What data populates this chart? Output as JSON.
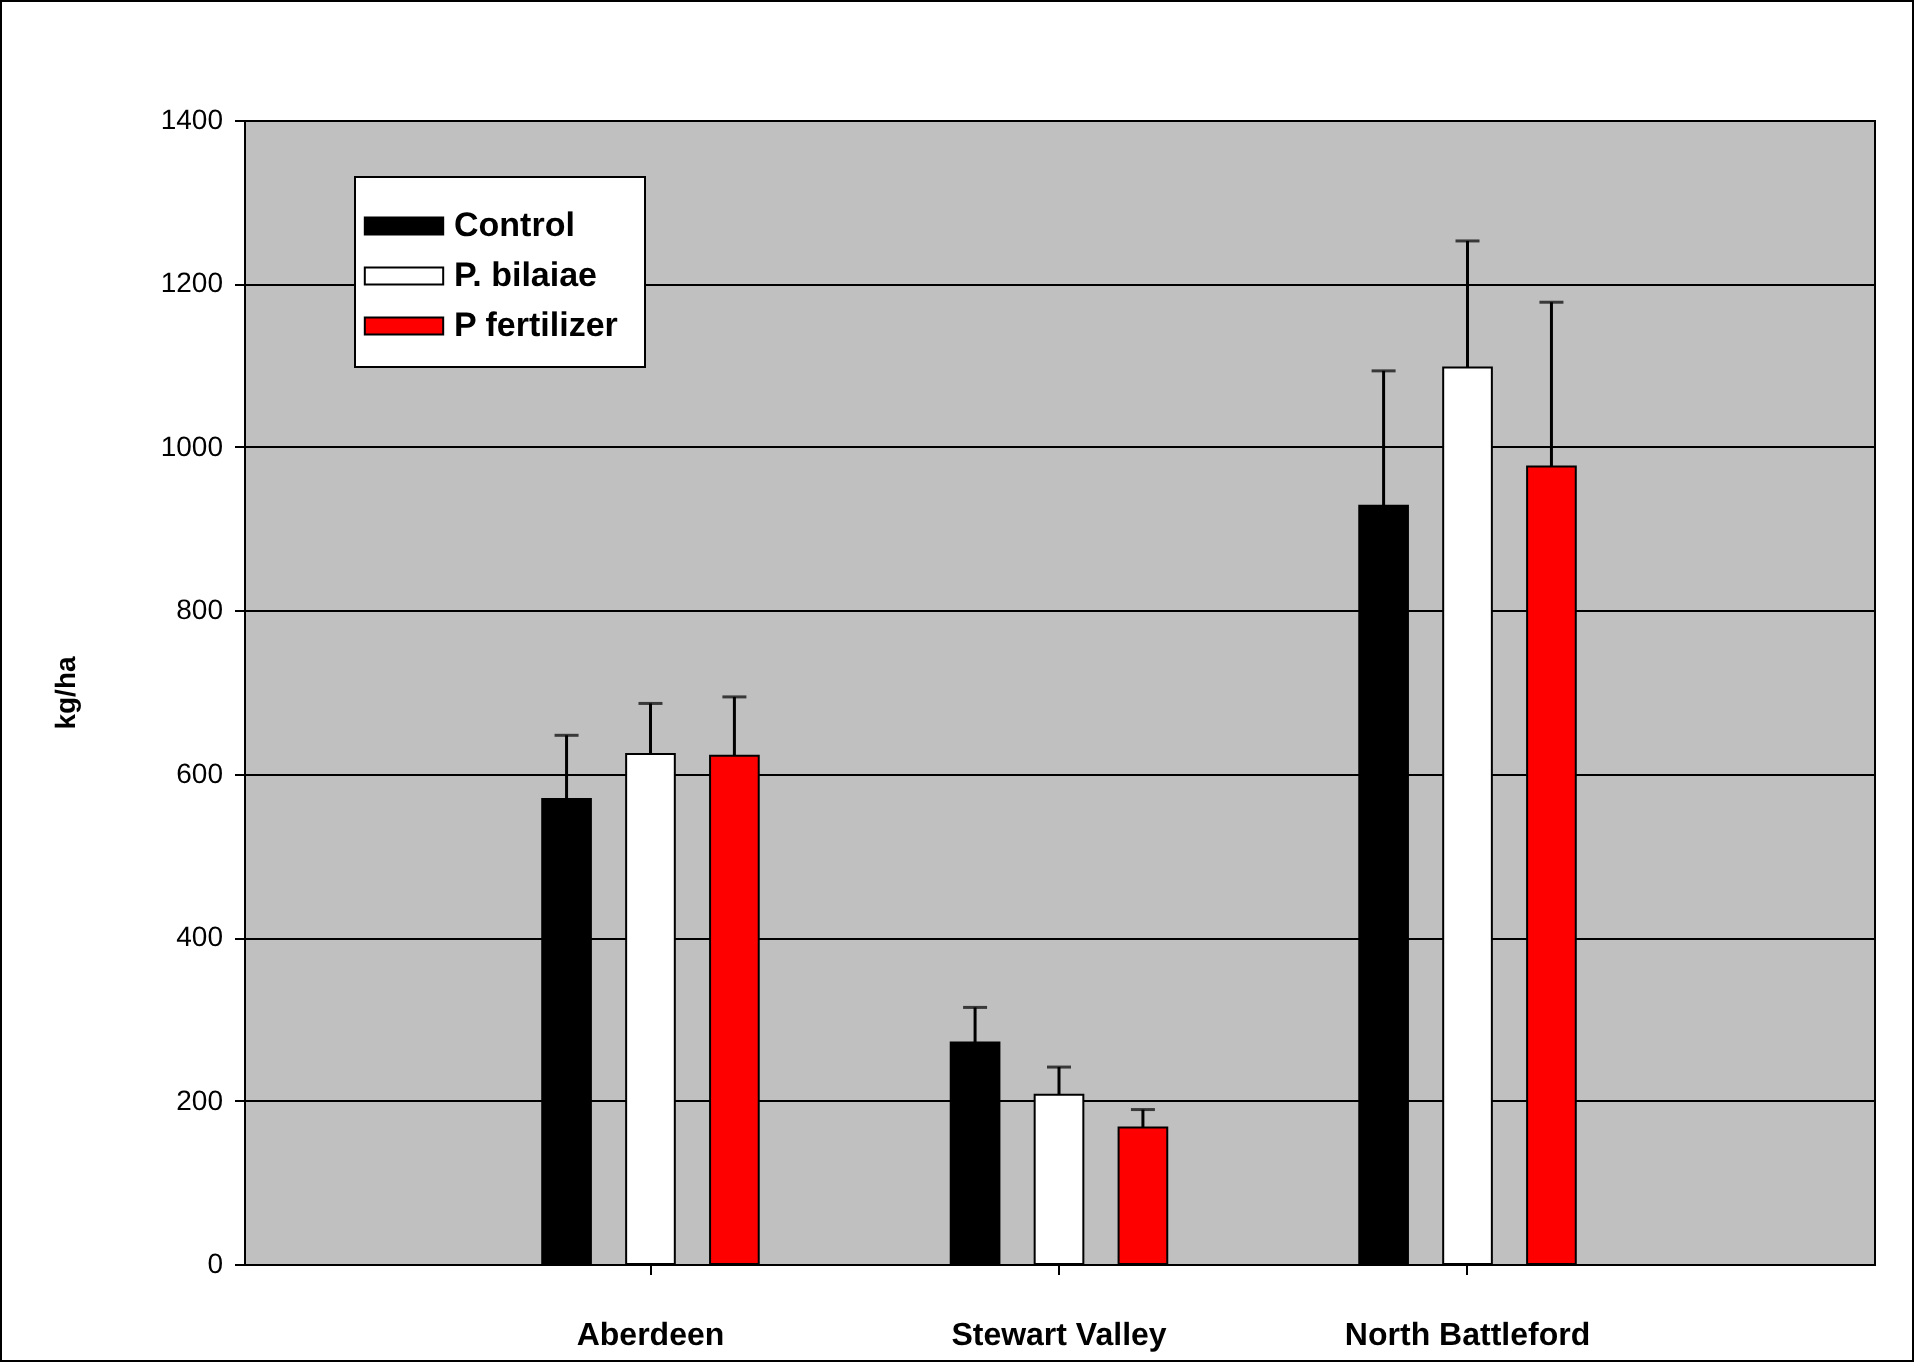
{
  "chart_data": {
    "type": "bar",
    "ylabel": "kg/ha",
    "categories": [
      "Aberdeen",
      "Stewart Valley",
      "North Battleford"
    ],
    "series": [
      {
        "name": "Control",
        "color": "#000000",
        "values": [
          569,
          271,
          928
        ],
        "errors": [
          78,
          43,
          165
        ]
      },
      {
        "name": "P. bilaiae",
        "color": "#ffffff",
        "values": [
          624,
          207,
          1097
        ],
        "errors": [
          62,
          34,
          155
        ]
      },
      {
        "name": "P fertilizer",
        "color": "#ff0000",
        "values": [
          622,
          167,
          976
        ],
        "errors": [
          72,
          22,
          201
        ]
      }
    ],
    "ylim": [
      0,
      1400
    ],
    "yticks": [
      0,
      200,
      400,
      600,
      800,
      1000,
      1200,
      1400
    ],
    "grid": "y",
    "legend": "top left"
  }
}
